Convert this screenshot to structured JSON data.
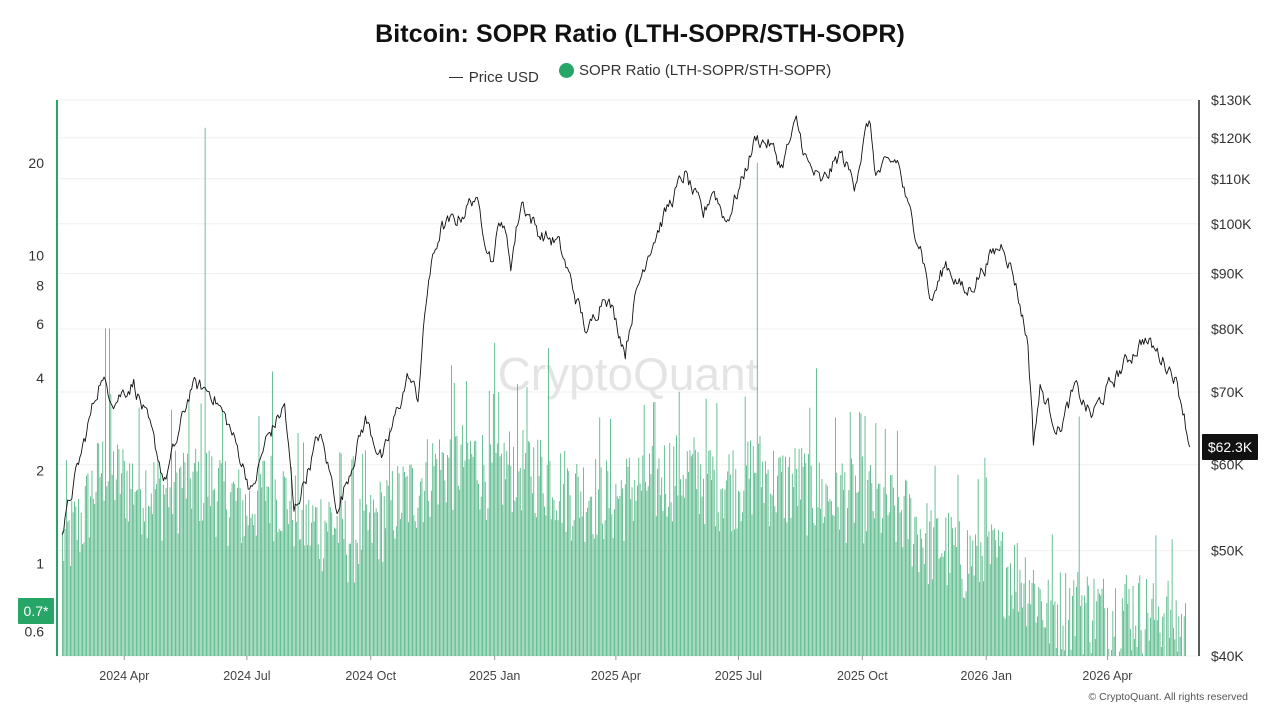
{
  "chart_data": {
    "type": "bar",
    "title": "Bitcoin: SOPR Ratio (LTH-SOPR/STH-SOPR)",
    "legend": {
      "position": "top-center"
    },
    "watermark": "CryptoQuant",
    "copyright": "© CryptoQuant. All rights reserved",
    "x_ticks": [
      "2024 Apr",
      "2024 Jul",
      "2024 Oct",
      "2025 Jan",
      "2025 Apr",
      "2025 Jul",
      "2025 Oct",
      "2026 Jan",
      "2026 Apr"
    ],
    "x_range": [
      "2024-02-14",
      "2026-06-05"
    ],
    "left_axis": {
      "scale": "log",
      "range": [
        0.5,
        32
      ],
      "ticks": [
        "0.6",
        "1",
        "2",
        "4",
        "6",
        "8",
        "10",
        "20"
      ]
    },
    "right_axis": {
      "scale": "log",
      "range": [
        40000,
        130000
      ],
      "ticks": [
        "$40K",
        "$50K",
        "$60K",
        "$70K",
        "$80K",
        "$90K",
        "$100K",
        "$110K",
        "$120K",
        "$130K"
      ]
    },
    "grid": true,
    "current_labels": {
      "ratio": "0.7*",
      "price": "$62.3K"
    },
    "series": [
      {
        "name": "Price USD",
        "type": "line",
        "axis": "right",
        "color": "#111111",
        "points": [
          [
            "2024-02-15",
            51800
          ],
          [
            "2024-03-01",
            62000
          ],
          [
            "2024-03-14",
            72000
          ],
          [
            "2024-03-25",
            69000
          ],
          [
            "2024-04-08",
            71500
          ],
          [
            "2024-04-20",
            64500
          ],
          [
            "2024-05-01",
            58000
          ],
          [
            "2024-05-10",
            63000
          ],
          [
            "2024-05-21",
            71000
          ],
          [
            "2024-06-05",
            70000
          ],
          [
            "2024-06-18",
            65000
          ],
          [
            "2024-07-05",
            56500
          ],
          [
            "2024-07-15",
            63000
          ],
          [
            "2024-07-29",
            68000
          ],
          [
            "2024-08-05",
            54000
          ],
          [
            "2024-08-24",
            64000
          ],
          [
            "2024-09-07",
            54500
          ],
          [
            "2024-09-27",
            66000
          ],
          [
            "2024-10-10",
            60500
          ],
          [
            "2024-10-29",
            72500
          ],
          [
            "2024-11-05",
            69000
          ],
          [
            "2024-11-13",
            89000
          ],
          [
            "2024-11-22",
            99000
          ],
          [
            "2024-12-05",
            101000
          ],
          [
            "2024-12-17",
            106000
          ],
          [
            "2024-12-30",
            92500
          ],
          [
            "2025-01-06",
            101500
          ],
          [
            "2025-01-13",
            92000
          ],
          [
            "2025-01-21",
            105000
          ],
          [
            "2025-02-03",
            98000
          ],
          [
            "2025-02-17",
            96000
          ],
          [
            "2025-03-03",
            85000
          ],
          [
            "2025-03-11",
            79000
          ],
          [
            "2025-03-24",
            87000
          ],
          [
            "2025-04-08",
            76500
          ],
          [
            "2025-04-14",
            84000
          ],
          [
            "2025-04-25",
            94500
          ],
          [
            "2025-05-09",
            103000
          ],
          [
            "2025-05-22",
            111000
          ],
          [
            "2025-06-05",
            101500
          ],
          [
            "2025-06-12",
            108000
          ],
          [
            "2025-06-22",
            100500
          ],
          [
            "2025-07-03",
            109000
          ],
          [
            "2025-07-14",
            120000
          ],
          [
            "2025-07-24",
            118500
          ],
          [
            "2025-08-02",
            113000
          ],
          [
            "2025-08-13",
            123500
          ],
          [
            "2025-08-22",
            113000
          ],
          [
            "2025-09-01",
            108500
          ],
          [
            "2025-09-15",
            116000
          ],
          [
            "2025-09-25",
            109000
          ],
          [
            "2025-10-06",
            124500
          ],
          [
            "2025-10-11",
            111000
          ],
          [
            "2025-10-27",
            114500
          ],
          [
            "2025-11-04",
            103000
          ],
          [
            "2025-11-14",
            95000
          ],
          [
            "2025-11-21",
            84500
          ],
          [
            "2025-12-02",
            92000
          ],
          [
            "2025-12-17",
            86000
          ],
          [
            "2026-01-05",
            93500
          ],
          [
            "2026-01-14",
            96000
          ],
          [
            "2026-01-22",
            89000
          ],
          [
            "2026-02-01",
            77500
          ],
          [
            "2026-02-05",
            63000
          ],
          [
            "2026-02-10",
            70500
          ],
          [
            "2026-02-24",
            64500
          ],
          [
            "2026-03-08",
            70500
          ],
          [
            "2026-03-20",
            66500
          ],
          [
            "2026-04-08",
            72500
          ],
          [
            "2026-04-28",
            78500
          ],
          [
            "2026-05-08",
            76000
          ],
          [
            "2026-05-20",
            73000
          ],
          [
            "2026-05-27",
            68000
          ],
          [
            "2026-06-01",
            62300
          ]
        ]
      },
      {
        "name": "SOPR Ratio (LTH-SOPR/STH-SOPR)",
        "type": "bar",
        "axis": "left",
        "color": "#27a567",
        "points": [
          [
            "2024-02-15",
            1.4
          ],
          [
            "2024-03-01",
            1.7
          ],
          [
            "2024-03-15",
            2.5
          ],
          [
            "2024-04-01",
            2.3
          ],
          [
            "2024-04-15",
            2.2
          ],
          [
            "2024-05-01",
            2.1
          ],
          [
            "2024-05-15",
            2.3
          ],
          [
            "2024-06-01",
            2.3
          ],
          [
            "2024-06-15",
            2.1
          ],
          [
            "2024-07-01",
            1.8
          ],
          [
            "2024-07-15",
            2.2
          ],
          [
            "2024-08-01",
            2.0
          ],
          [
            "2024-08-15",
            1.6
          ],
          [
            "2024-09-01",
            1.7
          ],
          [
            "2024-09-15",
            1.5
          ],
          [
            "2024-10-01",
            1.6
          ],
          [
            "2024-10-15",
            1.9
          ],
          [
            "2024-11-01",
            2.1
          ],
          [
            "2024-11-15",
            2.5
          ],
          [
            "2024-12-01",
            2.6
          ],
          [
            "2024-12-15",
            2.7
          ],
          [
            "2025-01-01",
            2.4
          ],
          [
            "2025-01-15",
            2.6
          ],
          [
            "2025-02-01",
            2.5
          ],
          [
            "2025-02-15",
            2.3
          ],
          [
            "2025-03-01",
            2.1
          ],
          [
            "2025-03-15",
            2.1
          ],
          [
            "2025-04-01",
            2.0
          ],
          [
            "2025-04-15",
            2.2
          ],
          [
            "2025-05-01",
            2.3
          ],
          [
            "2025-05-15",
            2.5
          ],
          [
            "2025-06-01",
            2.4
          ],
          [
            "2025-06-15",
            2.3
          ],
          [
            "2025-07-01",
            2.3
          ],
          [
            "2025-07-15",
            2.5
          ],
          [
            "2025-08-01",
            2.2
          ],
          [
            "2025-08-15",
            2.3
          ],
          [
            "2025-09-01",
            2.0
          ],
          [
            "2025-09-15",
            2.1
          ],
          [
            "2025-10-01",
            2.1
          ],
          [
            "2025-10-15",
            1.9
          ],
          [
            "2025-11-01",
            1.8
          ],
          [
            "2025-11-15",
            1.5
          ],
          [
            "2025-12-01",
            1.4
          ],
          [
            "2025-12-15",
            1.3
          ],
          [
            "2026-01-01",
            1.3
          ],
          [
            "2026-01-15",
            1.2
          ],
          [
            "2026-02-01",
            1.1
          ],
          [
            "2026-02-15",
            0.85
          ],
          [
            "2026-03-01",
            0.9
          ],
          [
            "2026-03-15",
            0.9
          ],
          [
            "2026-04-01",
            0.85
          ],
          [
            "2026-04-15",
            0.9
          ],
          [
            "2026-05-01",
            0.85
          ],
          [
            "2026-05-15",
            0.85
          ],
          [
            "2026-06-01",
            0.7
          ]
        ],
        "spikes": [
          [
            "2024-03-18",
            5.8
          ],
          [
            "2024-03-21",
            5.8
          ],
          [
            "2024-05-31",
            26
          ],
          [
            "2024-07-20",
            4.2
          ],
          [
            "2024-11-30",
            4.4
          ],
          [
            "2025-01-01",
            5.2
          ],
          [
            "2025-02-10",
            5.0
          ],
          [
            "2025-07-15",
            20
          ],
          [
            "2025-08-28",
            4.3
          ],
          [
            "2025-12-31",
            2.2
          ],
          [
            "2026-03-11",
            3.0
          ]
        ]
      }
    ]
  }
}
